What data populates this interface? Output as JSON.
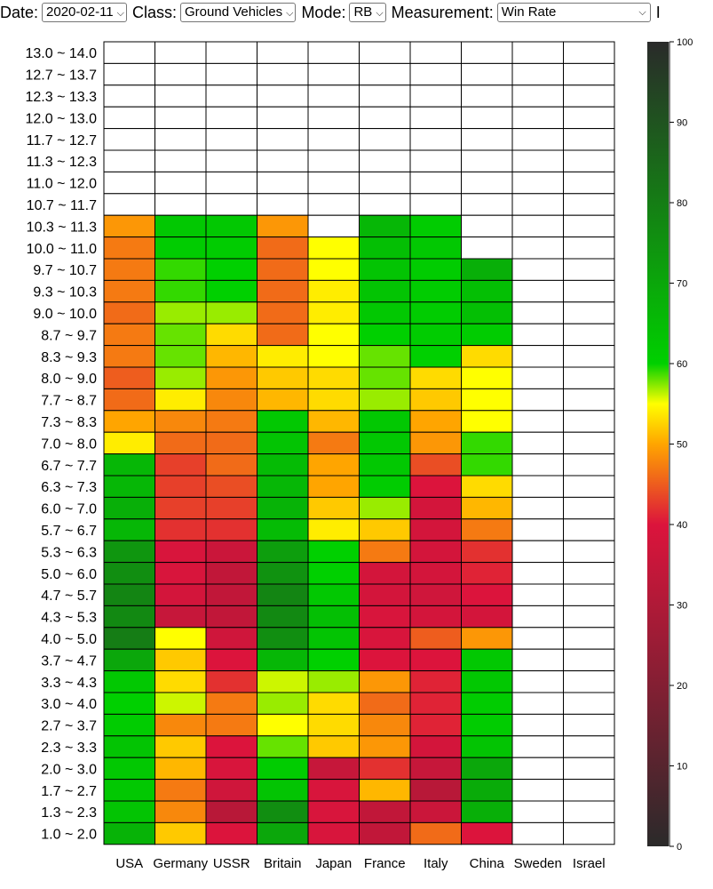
{
  "controls": {
    "date_label": "Date:",
    "date_value": "2020-02-11",
    "class_label": "Class:",
    "class_value": "Ground Vehicles",
    "mode_label": "Mode:",
    "mode_value": "RB",
    "measurement_label": "Measurement:",
    "measurement_value": "Win Rate",
    "trailing_label": "I"
  },
  "chart_data": {
    "type": "heatmap",
    "title": "",
    "xlabel": "",
    "ylabel": "",
    "x": [
      "USA",
      "Germany",
      "USSR",
      "Britain",
      "Japan",
      "France",
      "Italy",
      "China",
      "Sweden",
      "Israel"
    ],
    "y": [
      "13.0 ~ 14.0",
      "12.7 ~ 13.7",
      "12.3 ~ 13.3",
      "12.0 ~ 13.0",
      "11.7 ~ 12.7",
      "11.3 ~ 12.3",
      "11.0 ~ 12.0",
      "10.7 ~ 11.7",
      "10.3 ~ 11.3",
      "10.0 ~ 11.0",
      "9.7 ~ 10.7",
      "9.3 ~ 10.3",
      "9.0 ~ 10.0",
      "8.7 ~ 9.7",
      "8.3 ~ 9.3",
      "8.0 ~ 9.0",
      "7.7 ~ 8.7",
      "7.3 ~ 8.3",
      "7.0 ~ 8.0",
      "6.7 ~ 7.7",
      "6.3 ~ 7.3",
      "6.0 ~ 7.0",
      "5.7 ~ 6.7",
      "5.3 ~ 6.3",
      "5.0 ~ 6.0",
      "4.7 ~ 5.7",
      "4.3 ~ 5.3",
      "4.0 ~ 5.0",
      "3.7 ~ 4.7",
      "3.3 ~ 4.3",
      "3.0 ~ 4.0",
      "2.7 ~ 3.7",
      "2.3 ~ 3.3",
      "2.0 ~ 3.0",
      "1.7 ~ 2.7",
      "1.3 ~ 2.3",
      "1.0 ~ 2.0"
    ],
    "values": [
      [
        null,
        null,
        null,
        null,
        null,
        null,
        null,
        null,
        null,
        null
      ],
      [
        null,
        null,
        null,
        null,
        null,
        null,
        null,
        null,
        null,
        null
      ],
      [
        null,
        null,
        null,
        null,
        null,
        null,
        null,
        null,
        null,
        null
      ],
      [
        null,
        null,
        null,
        null,
        null,
        null,
        null,
        null,
        null,
        null
      ],
      [
        null,
        null,
        null,
        null,
        null,
        null,
        null,
        null,
        null,
        null
      ],
      [
        null,
        null,
        null,
        null,
        null,
        null,
        null,
        null,
        null,
        null
      ],
      [
        null,
        null,
        null,
        null,
        null,
        null,
        null,
        null,
        null,
        null
      ],
      [
        null,
        null,
        null,
        null,
        null,
        null,
        null,
        null,
        null,
        null
      ],
      [
        49,
        62,
        62,
        49,
        null,
        66,
        61,
        null,
        null,
        null
      ],
      [
        47,
        61,
        61,
        46,
        55,
        64,
        62,
        null,
        null,
        null
      ],
      [
        47,
        59,
        60,
        46,
        55,
        63,
        61,
        68,
        null,
        null
      ],
      [
        47,
        59,
        60,
        46,
        54,
        63,
        61,
        64,
        null,
        null
      ],
      [
        46,
        57,
        57,
        46,
        54,
        62,
        61,
        64,
        null,
        null
      ],
      [
        47,
        58,
        53,
        46,
        55,
        60,
        61,
        61,
        null,
        null
      ],
      [
        47,
        58,
        51,
        54,
        55,
        58,
        60,
        53,
        null,
        null
      ],
      [
        45,
        57,
        49,
        52,
        53,
        58,
        53,
        55,
        null,
        null
      ],
      [
        46,
        54,
        48,
        51,
        53,
        57,
        52,
        55,
        null,
        null
      ],
      [
        50,
        48,
        47,
        62,
        51,
        62,
        50,
        55,
        null,
        null
      ],
      [
        54,
        46,
        46,
        63,
        47,
        62,
        49,
        59,
        null,
        null
      ],
      [
        66,
        43,
        46,
        65,
        50,
        62,
        44,
        59,
        null,
        null
      ],
      [
        66,
        43,
        44,
        66,
        50,
        61,
        40,
        53,
        null,
        null
      ],
      [
        68,
        43,
        43,
        67,
        52,
        57,
        38,
        51,
        null,
        null
      ],
      [
        66,
        42,
        42,
        65,
        54,
        52,
        38,
        47,
        null,
        null
      ],
      [
        74,
        39,
        36,
        72,
        60,
        47,
        38,
        42,
        null,
        null
      ],
      [
        76,
        39,
        34,
        75,
        60,
        38,
        38,
        41,
        null,
        null
      ],
      [
        78,
        38,
        34,
        78,
        62,
        38,
        37,
        40,
        null,
        null
      ],
      [
        77,
        35,
        34,
        77,
        64,
        39,
        38,
        38,
        null,
        null
      ],
      [
        80,
        55,
        37,
        76,
        63,
        39,
        45,
        49,
        null,
        null
      ],
      [
        70,
        52,
        40,
        66,
        60,
        40,
        40,
        62,
        null,
        null
      ],
      [
        62,
        53,
        42,
        56,
        57,
        49,
        41,
        62,
        null,
        null
      ],
      [
        60,
        56,
        47,
        57,
        53,
        46,
        41,
        61,
        null,
        null
      ],
      [
        61,
        48,
        47,
        55,
        53,
        48,
        41,
        61,
        null,
        null
      ],
      [
        63,
        52,
        40,
        58,
        52,
        49,
        38,
        63,
        null,
        null
      ],
      [
        62,
        51,
        39,
        61,
        35,
        42,
        35,
        70,
        null,
        null
      ],
      [
        62,
        47,
        37,
        63,
        39,
        51,
        32,
        69,
        null,
        null
      ],
      [
        63,
        48,
        32,
        76,
        39,
        34,
        36,
        68,
        null,
        null
      ],
      [
        67,
        52,
        40,
        70,
        39,
        34,
        46,
        40,
        null,
        null
      ]
    ],
    "colorbar": {
      "min": 0,
      "max": 100,
      "ticks": [
        0,
        10,
        20,
        30,
        40,
        50,
        60,
        70,
        80,
        90,
        100
      ]
    },
    "colormap_stops": [
      "#2a2a2a",
      "#dc143c",
      "#ffa500",
      "#ffff00",
      "#00d000",
      "#2a2a2a"
    ],
    "colors": {
      "empty_cell": "#ffffff",
      "grid_line": "#000000"
    }
  }
}
